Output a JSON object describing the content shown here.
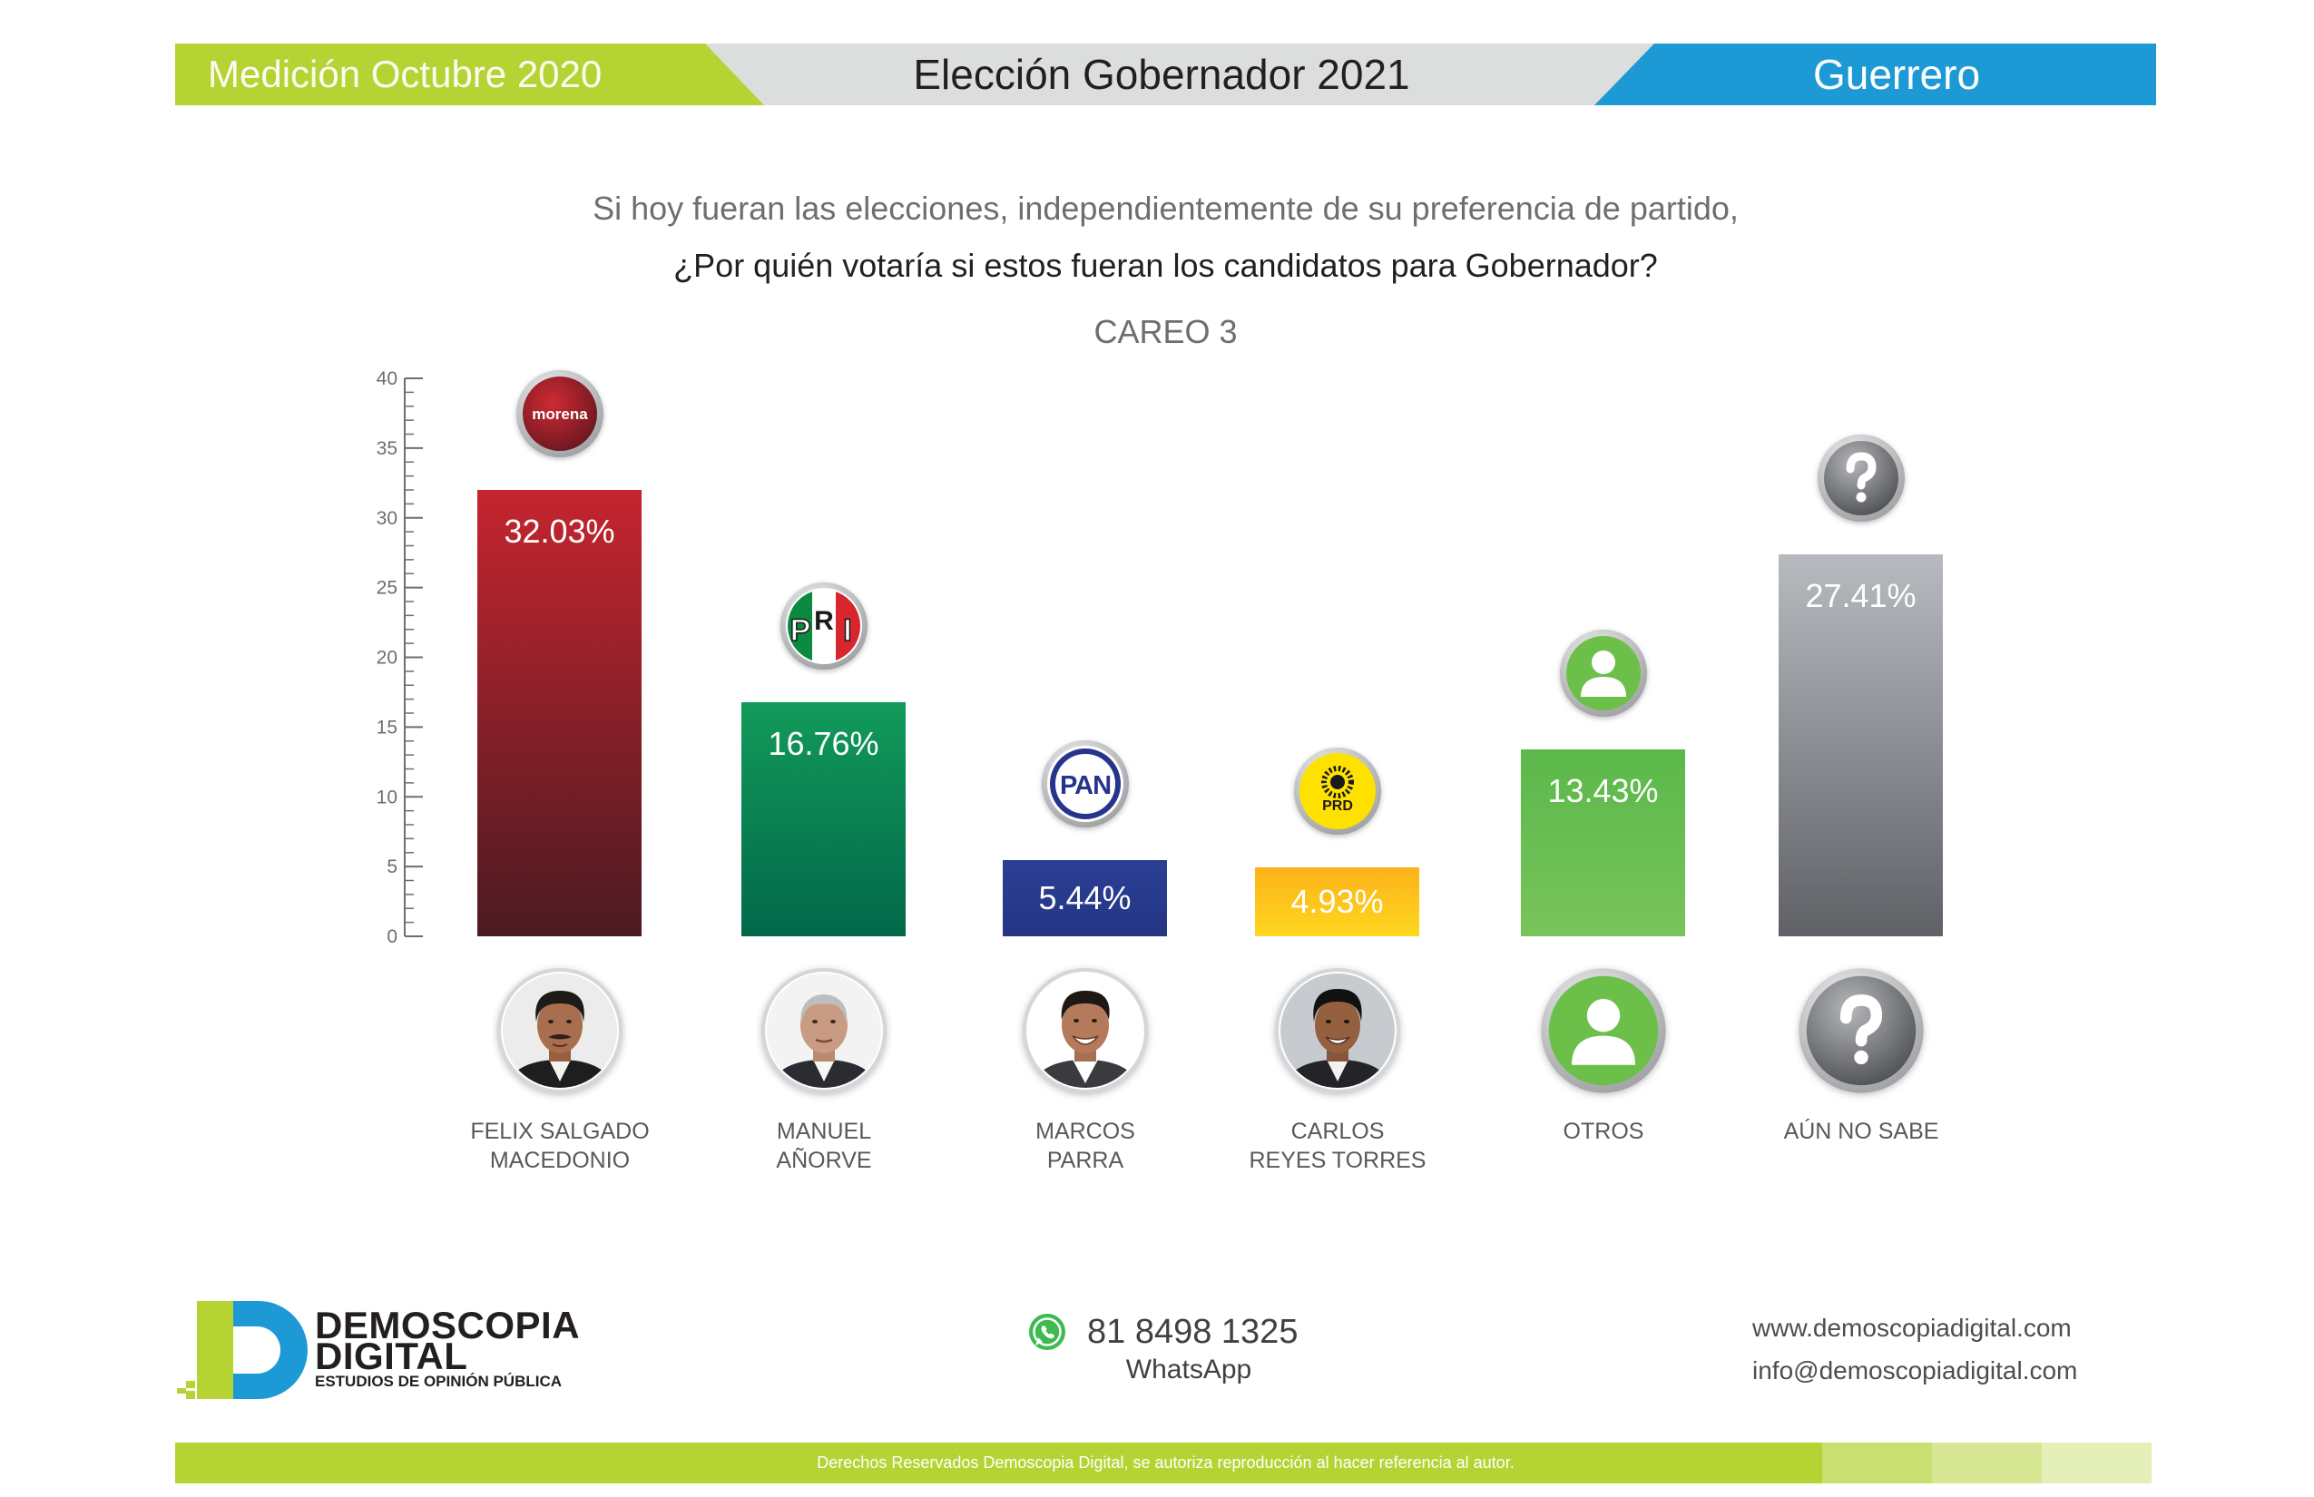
{
  "theme": {
    "lime": "#b6d334",
    "gray": "#dcdddd",
    "blue": "#1d9ad6",
    "footer_fade": [
      "#c9df70",
      "#d7e794",
      "#e5efb8"
    ]
  },
  "header": {
    "period": "Medición Octubre 2020",
    "election": "Elección Gobernador 2021",
    "state": "Guerrero"
  },
  "question": {
    "line1": "Si hoy fueran las elecciones, independientemente de su preferencia de partido,",
    "line2": "¿Por quién votaría si estos fueran los candidatos para Gobernador?"
  },
  "chart_data": {
    "type": "bar",
    "title": "CAREO 3",
    "categories": [
      "FELIX SALGADO\nMACEDONIO",
      "MANUEL\nAÑORVE",
      "MARCOS\nPARRA",
      "CARLOS\nREYES TORRES",
      "OTROS",
      "AÚN NO SABE"
    ],
    "values": [
      32.03,
      16.76,
      5.44,
      4.93,
      13.43,
      27.41
    ],
    "value_suffix": "%",
    "ylim": [
      0,
      40
    ],
    "yticks": [
      0,
      5,
      10,
      15,
      20,
      25,
      30,
      35,
      40
    ],
    "grid": false,
    "bar_colors": [
      [
        "#c5252f",
        "#4c1a22"
      ],
      [
        "#129a5a",
        "#01684a"
      ],
      [
        "#2b3f95",
        "#233583"
      ],
      [
        "#fbb21a",
        "#ffd71f"
      ],
      [
        "#5bb84a",
        "#78c45b"
      ],
      [
        "#b7babf",
        "#5f6166"
      ]
    ],
    "party_icons": [
      "morena-logo",
      "pri-logo",
      "pan-logo",
      "prd-logo",
      "person-icon",
      "question-icon"
    ]
  },
  "party_logos": {
    "morena": "morena",
    "pri": "PRI",
    "pan": "PAN",
    "prd": "PRD"
  },
  "footer": {
    "brand_line1": "DEMOSCOPIA",
    "brand_line2": "DIGITAL",
    "brand_tagline": "ESTUDIOS DE OPINIÓN PÚBLICA",
    "whatsapp_icon": "whatsapp-icon",
    "phone": "81 8498 1325",
    "phone_label": "WhatsApp",
    "website": "www.demoscopiadigital.com",
    "email": "info@demoscopiadigital.com",
    "rights": "Derechos Reservados Demoscopia Digital, se autoriza reproducción al hacer referencia al autor."
  }
}
